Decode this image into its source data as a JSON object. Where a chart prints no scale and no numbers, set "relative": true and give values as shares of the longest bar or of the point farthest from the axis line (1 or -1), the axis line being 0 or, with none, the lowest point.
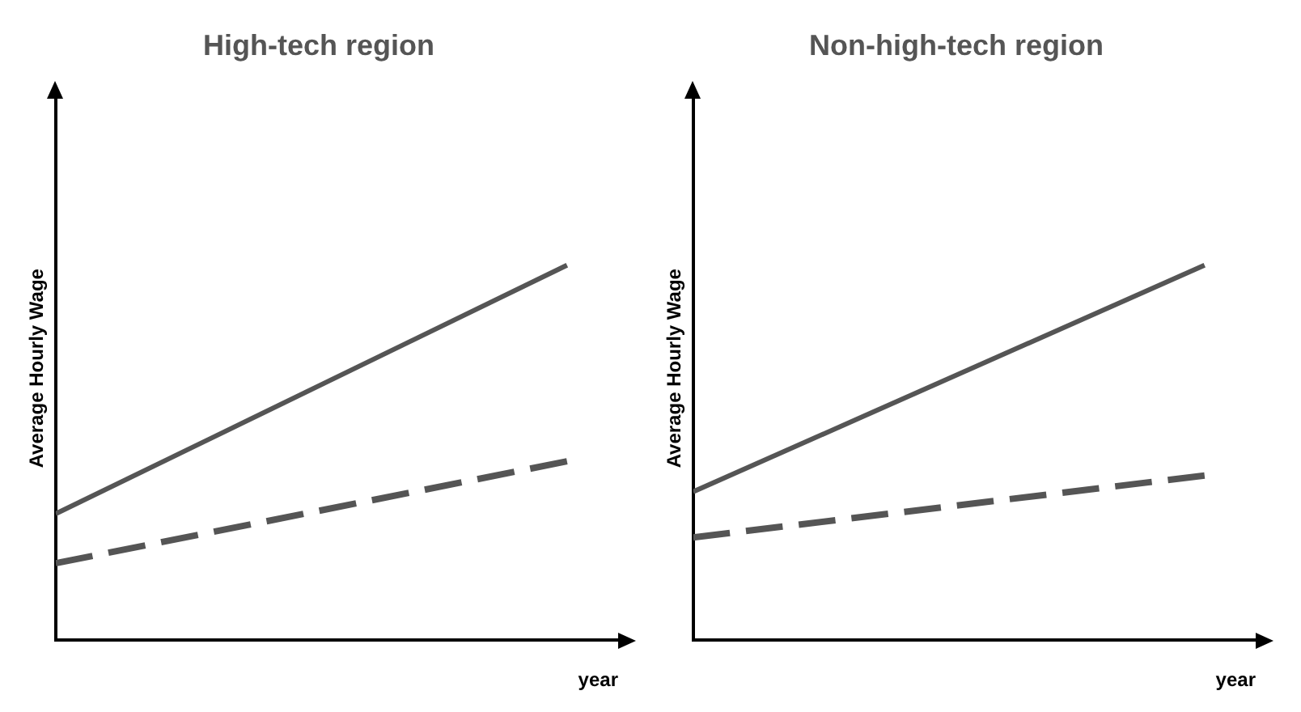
{
  "chart_data": [
    {
      "type": "line",
      "title": "High-tech region",
      "xlabel": "year",
      "ylabel": "Average Hourly Wage",
      "categories": [
        null,
        null
      ],
      "relative": true,
      "grid": false,
      "legend": false,
      "series": [
        {
          "color": "#555555",
          "values": [
            0.337,
            1
          ],
          "line_style": "solid"
        },
        {
          "color": "#555555",
          "values": [
            0.205,
            0.477
          ],
          "line_style": "dashed"
        }
      ]
    },
    {
      "type": "line",
      "title": "Non-high-tech region",
      "xlabel": "year",
      "ylabel": "Average Hourly Wage",
      "categories": [
        null,
        null
      ],
      "relative": true,
      "grid": false,
      "legend": false,
      "series": [
        {
          "color": "#555555",
          "values": [
            0.396,
            1
          ],
          "line_style": "solid"
        },
        {
          "color": "#555555",
          "values": [
            0.274,
            0.439
          ],
          "line_style": "dashed"
        }
      ]
    }
  ]
}
